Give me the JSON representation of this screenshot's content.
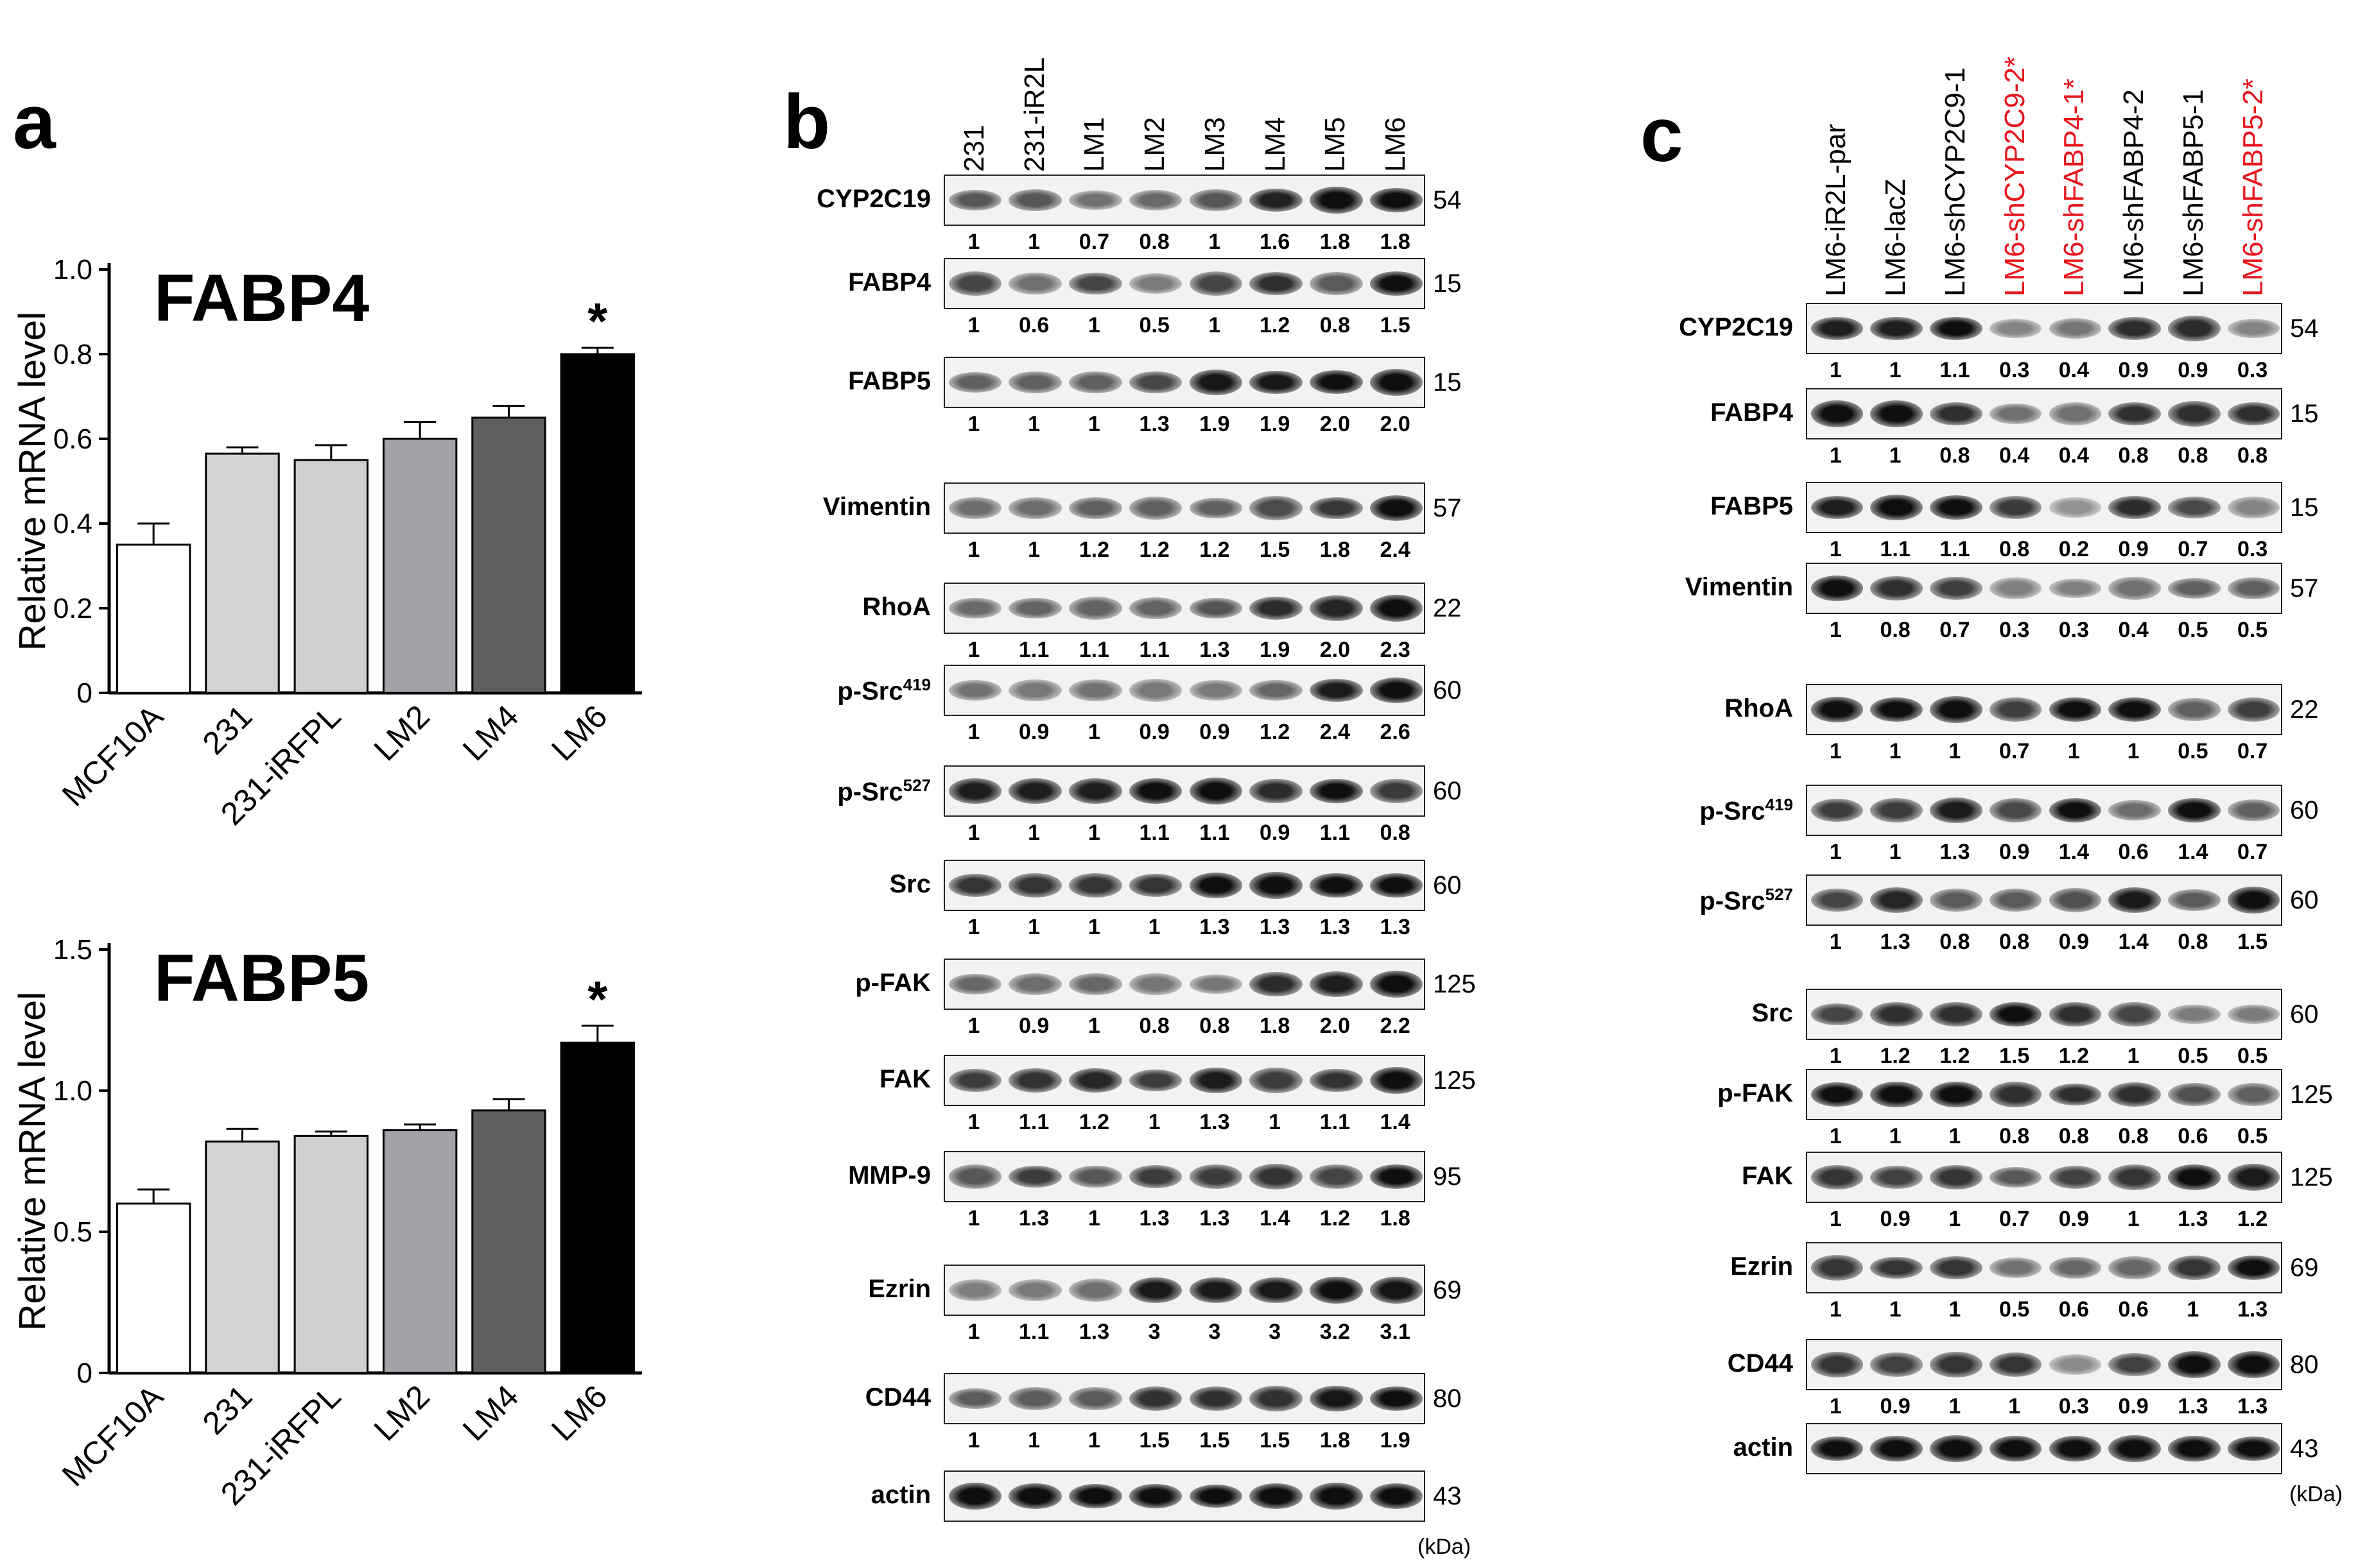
{
  "panels": {
    "a": {
      "letter": "a",
      "charts": [
        {
          "type": "bar",
          "title": "FABP4",
          "ylabel": "Relative mRNA level",
          "ylim": [
            0,
            1.0
          ],
          "yticks": [
            "0",
            "0.2",
            "0.4",
            "0.6",
            "0.8",
            "1.0"
          ],
          "ytick_values": [
            0,
            0.2,
            0.4,
            0.6,
            0.8,
            1.0
          ],
          "categories": [
            "MCF10A",
            "231",
            "231-iRFPL",
            "LM2",
            "LM4",
            "LM6"
          ],
          "values": [
            0.35,
            0.565,
            0.55,
            0.6,
            0.65,
            0.8
          ],
          "errors": [
            0.05,
            0.015,
            0.035,
            0.04,
            0.028,
            0.015
          ],
          "colors": [
            "#ffffff",
            "#d4d4d4",
            "#cfcfcf",
            "#a2a2a8",
            "#5f5f5f",
            "#000000"
          ],
          "significance": [
            "",
            "",
            "",
            "",
            "",
            "*"
          ]
        },
        {
          "type": "bar",
          "title": "FABP5",
          "ylabel": "Relative mRNA level",
          "ylim": [
            0,
            1.5
          ],
          "yticks": [
            "0",
            "0.5",
            "1.0",
            "1.5"
          ],
          "ytick_values": [
            0,
            0.5,
            1.0,
            1.5
          ],
          "categories": [
            "MCF10A",
            "231",
            "231-iRFPL",
            "LM2",
            "LM4",
            "LM6"
          ],
          "values": [
            0.6,
            0.82,
            0.84,
            0.86,
            0.93,
            1.17
          ],
          "errors": [
            0.05,
            0.045,
            0.015,
            0.02,
            0.04,
            0.06
          ],
          "colors": [
            "#ffffff",
            "#d4d4d4",
            "#cfcfcf",
            "#a2a2a8",
            "#5f5f5f",
            "#000000"
          ],
          "significance": [
            "",
            "",
            "",
            "",
            "",
            "*"
          ]
        }
      ]
    },
    "b": {
      "letter": "b",
      "lanes": [
        "231",
        "231-iR2L",
        "LM1",
        "LM2",
        "LM3",
        "LM4",
        "LM5",
        "LM6"
      ],
      "kda_unit": "(kDa)",
      "rows": [
        {
          "name": "CYP2C19",
          "kda": "54",
          "quant": [
            "1",
            "1",
            "0.7",
            "0.8",
            "1",
            "1.6",
            "1.8",
            "1.8"
          ]
        },
        {
          "name": "FABP4",
          "kda": "15",
          "quant": [
            "1",
            "0.6",
            "1",
            "0.5",
            "1",
            "1.2",
            "0.8",
            "1.5"
          ]
        },
        {
          "name": "FABP5",
          "kda": "15",
          "quant": [
            "1",
            "1",
            "1",
            "1.3",
            "1.9",
            "1.9",
            "2.0",
            "2.0"
          ]
        },
        {
          "name": "Vimentin",
          "kda": "57",
          "quant": [
            "1",
            "1",
            "1.2",
            "1.2",
            "1.2",
            "1.5",
            "1.8",
            "2.4"
          ]
        },
        {
          "name": "RhoA",
          "kda": "22",
          "quant": [
            "1",
            "1.1",
            "1.1",
            "1.1",
            "1.3",
            "1.9",
            "2.0",
            "2.3"
          ]
        },
        {
          "name": "p-Src",
          "sup": "419",
          "kda": "60",
          "quant": [
            "1",
            "0.9",
            "1",
            "0.9",
            "0.9",
            "1.2",
            "2.4",
            "2.6"
          ]
        },
        {
          "name": "p-Src",
          "sup": "527",
          "kda": "60",
          "quant": [
            "1",
            "1",
            "1",
            "1.1",
            "1.1",
            "0.9",
            "1.1",
            "0.8"
          ]
        },
        {
          "name": "Src",
          "kda": "60",
          "quant": [
            "1",
            "1",
            "1",
            "1",
            "1.3",
            "1.3",
            "1.3",
            "1.3"
          ]
        },
        {
          "name": "p-FAK",
          "kda": "125",
          "quant": [
            "1",
            "0.9",
            "1",
            "0.8",
            "0.8",
            "1.8",
            "2.0",
            "2.2"
          ]
        },
        {
          "name": "FAK",
          "kda": "125",
          "quant": [
            "1",
            "1.1",
            "1.2",
            "1",
            "1.3",
            "1",
            "1.1",
            "1.4"
          ]
        },
        {
          "name": "MMP-9",
          "kda": "95",
          "quant": [
            "1",
            "1.3",
            "1",
            "1.3",
            "1.3",
            "1.4",
            "1.2",
            "1.8"
          ]
        },
        {
          "name": "Ezrin",
          "kda": "69",
          "quant": [
            "1",
            "1.1",
            "1.3",
            "3",
            "3",
            "3",
            "3.2",
            "3.1"
          ]
        },
        {
          "name": "CD44",
          "kda": "80",
          "quant": [
            "1",
            "1",
            "1",
            "1.5",
            "1.5",
            "1.5",
            "1.8",
            "1.9"
          ]
        },
        {
          "name": "actin",
          "kda": "43",
          "quant": []
        }
      ]
    },
    "c": {
      "letter": "c",
      "lanes": [
        "LM6-iR2L-par",
        "LM6-lacZ",
        "LM6-shCYP2C9-1",
        "LM6-shCYP2C9-2*",
        "LM6-shFABP4-1*",
        "LM6-shFABP4-2",
        "LM6-shFABP5-1",
        "LM6-shFABP5-2*"
      ],
      "lane_colors": [
        "#000000",
        "#000000",
        "#000000",
        "#e8141c",
        "#e8141c",
        "#000000",
        "#000000",
        "#e8141c"
      ],
      "kda_unit": "(kDa)",
      "rows": [
        {
          "name": "CYP2C19",
          "kda": "54",
          "quant": [
            "1",
            "1",
            "1.1",
            "0.3",
            "0.4",
            "0.9",
            "0.9",
            "0.3"
          ]
        },
        {
          "name": "FABP4",
          "kda": "15",
          "quant": [
            "1",
            "1",
            "0.8",
            "0.4",
            "0.4",
            "0.8",
            "0.8",
            "0.8"
          ]
        },
        {
          "name": "FABP5",
          "kda": "15",
          "quant": [
            "1",
            "1.1",
            "1.1",
            "0.8",
            "0.2",
            "0.9",
            "0.7",
            "0.3"
          ]
        },
        {
          "name": "Vimentin",
          "kda": "57",
          "quant": [
            "1",
            "0.8",
            "0.7",
            "0.3",
            "0.3",
            "0.4",
            "0.5",
            "0.5"
          ]
        },
        {
          "name": "RhoA",
          "kda": "22",
          "quant": [
            "1",
            "1",
            "1",
            "0.7",
            "1",
            "1",
            "0.5",
            "0.7"
          ]
        },
        {
          "name": "p-Src",
          "sup": "419",
          "kda": "60",
          "quant": [
            "1",
            "1",
            "1.3",
            "0.9",
            "1.4",
            "0.6",
            "1.4",
            "0.7"
          ]
        },
        {
          "name": "p-Src",
          "sup": "527",
          "kda": "60",
          "quant": [
            "1",
            "1.3",
            "0.8",
            "0.8",
            "0.9",
            "1.4",
            "0.8",
            "1.5"
          ]
        },
        {
          "name": "Src",
          "kda": "60",
          "quant": [
            "1",
            "1.2",
            "1.2",
            "1.5",
            "1.2",
            "1",
            "0.5",
            "0.5"
          ]
        },
        {
          "name": "p-FAK",
          "kda": "125",
          "quant": [
            "1",
            "1",
            "1",
            "0.8",
            "0.8",
            "0.8",
            "0.6",
            "0.5"
          ]
        },
        {
          "name": "FAK",
          "kda": "125",
          "quant": [
            "1",
            "0.9",
            "1",
            "0.7",
            "0.9",
            "1",
            "1.3",
            "1.2"
          ]
        },
        {
          "name": "Ezrin",
          "kda": "69",
          "quant": [
            "1",
            "1",
            "1",
            "0.5",
            "0.6",
            "0.6",
            "1",
            "1.3"
          ]
        },
        {
          "name": "CD44",
          "kda": "80",
          "quant": [
            "1",
            "0.9",
            "1",
            "1",
            "0.3",
            "0.9",
            "1.3",
            "1.3"
          ]
        },
        {
          "name": "actin",
          "kda": "43",
          "quant": []
        }
      ]
    }
  },
  "chart_data": [
    {
      "type": "bar",
      "title": "FABP4",
      "ylabel": "Relative mRNA level",
      "xlabel": "",
      "categories": [
        "MCF10A",
        "231",
        "231-iRFPL",
        "LM2",
        "LM4",
        "LM6"
      ],
      "values": [
        0.35,
        0.565,
        0.55,
        0.6,
        0.65,
        0.8
      ],
      "errors": [
        0.05,
        0.015,
        0.035,
        0.04,
        0.028,
        0.015
      ],
      "ylim": [
        0,
        1.0
      ],
      "annotations": [
        "* above LM6"
      ]
    },
    {
      "type": "bar",
      "title": "FABP5",
      "ylabel": "Relative mRNA level",
      "xlabel": "",
      "categories": [
        "MCF10A",
        "231",
        "231-iRFPL",
        "LM2",
        "LM4",
        "LM6"
      ],
      "values": [
        0.6,
        0.82,
        0.84,
        0.86,
        0.93,
        1.17
      ],
      "errors": [
        0.05,
        0.045,
        0.015,
        0.02,
        0.04,
        0.06
      ],
      "ylim": [
        0,
        1.5
      ],
      "annotations": [
        "* above LM6"
      ]
    }
  ]
}
